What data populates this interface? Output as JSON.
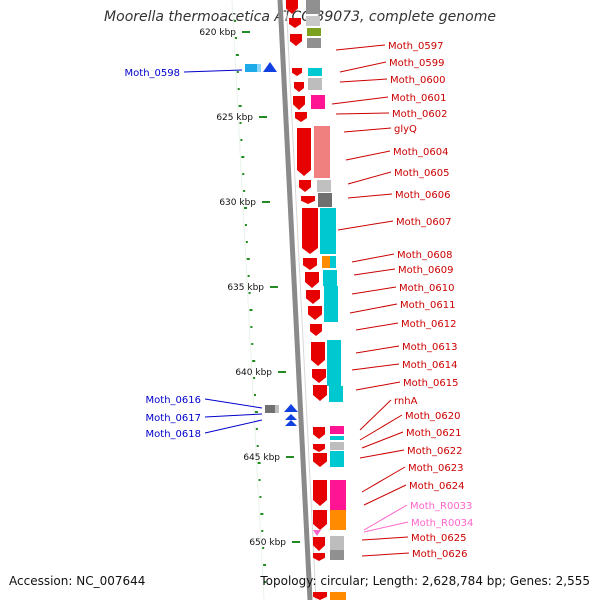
{
  "title": "Moorella thermoacetica ATCC 39073, complete genome",
  "accession": "Accession: NC_007644",
  "topology": "Topology: circular; Length: 2,628,784 bp; Genes: 2,555",
  "ruler_ticks": [
    {
      "label": "620 kbp",
      "kbp": 620
    },
    {
      "label": "625 kbp",
      "kbp": 625
    },
    {
      "label": "630 kbp",
      "kbp": 630
    },
    {
      "label": "635 kbp",
      "kbp": 635
    },
    {
      "label": "640 kbp",
      "kbp": 640
    },
    {
      "label": "645 kbp",
      "kbp": 645
    },
    {
      "label": "650 kbp",
      "kbp": 650
    }
  ],
  "left_labels": [
    {
      "text": "Moth_0598"
    },
    {
      "text": "Moth_0616"
    },
    {
      "text": "Moth_0617"
    },
    {
      "text": "Moth_0618"
    }
  ],
  "right_labels": [
    {
      "text": "Moth_0597",
      "type": "cds"
    },
    {
      "text": "Moth_0599",
      "type": "cds"
    },
    {
      "text": "Moth_0600",
      "type": "cds"
    },
    {
      "text": "Moth_0601",
      "type": "cds"
    },
    {
      "text": "Moth_0602",
      "type": "cds"
    },
    {
      "text": "glyQ",
      "type": "cds"
    },
    {
      "text": "Moth_0604",
      "type": "cds"
    },
    {
      "text": "Moth_0605",
      "type": "cds"
    },
    {
      "text": "Moth_0606",
      "type": "cds"
    },
    {
      "text": "Moth_0607",
      "type": "cds"
    },
    {
      "text": "Moth_0608",
      "type": "cds"
    },
    {
      "text": "Moth_0609",
      "type": "cds"
    },
    {
      "text": "Moth_0610",
      "type": "cds"
    },
    {
      "text": "Moth_0611",
      "type": "cds"
    },
    {
      "text": "Moth_0612",
      "type": "cds"
    },
    {
      "text": "Moth_0613",
      "type": "cds"
    },
    {
      "text": "Moth_0614",
      "type": "cds"
    },
    {
      "text": "Moth_0615",
      "type": "cds"
    },
    {
      "text": "rnhA",
      "type": "cds"
    },
    {
      "text": "Moth_0620",
      "type": "cds"
    },
    {
      "text": "Moth_0621",
      "type": "cds"
    },
    {
      "text": "Moth_0622",
      "type": "cds"
    },
    {
      "text": "Moth_0623",
      "type": "cds"
    },
    {
      "text": "Moth_0624",
      "type": "cds"
    },
    {
      "text": "Moth_R0033",
      "type": "rna"
    },
    {
      "text": "Moth_R0034",
      "type": "rna"
    },
    {
      "text": "Moth_0625",
      "type": "cds"
    },
    {
      "text": "Moth_0626",
      "type": "cds"
    }
  ],
  "colors": {
    "forward_strand": "#e60000",
    "reverse_strand": "#1040e0",
    "rna": "#ff66cc",
    "backbone": "#8a8a8a",
    "gc_skew": "#228b22",
    "cog_cyan": "#00c8d0",
    "cog_pink": "#ff1493",
    "cog_salmon": "#f08080",
    "cog_grey": "#909090",
    "cog_orange": "#ff8c00",
    "cog_olive": "#7ca020"
  }
}
